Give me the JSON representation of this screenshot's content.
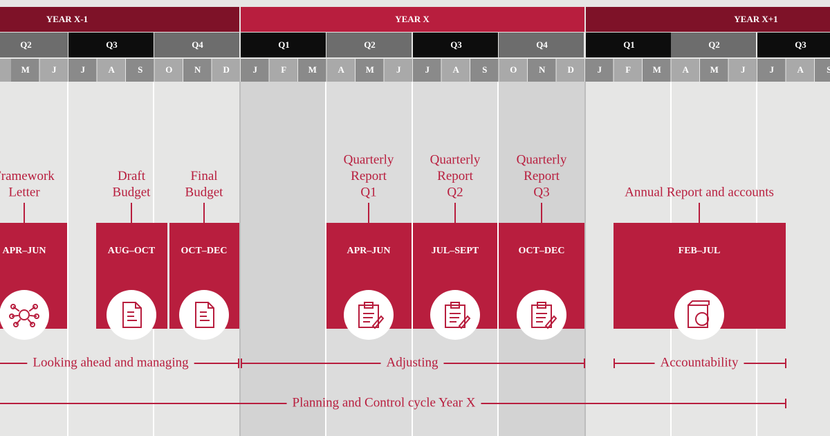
{
  "years": [
    "YEAR X-1",
    "YEAR X",
    "YEAR X+1"
  ],
  "quarters": [
    "Q2",
    "Q3",
    "Q4",
    "Q1",
    "Q2",
    "Q3",
    "Q4",
    "Q1",
    "Q2",
    "Q3"
  ],
  "months": [
    "M",
    "J",
    "J",
    "A",
    "S",
    "O",
    "N",
    "D",
    "J",
    "F",
    "M",
    "A",
    "M",
    "J",
    "J",
    "A",
    "S",
    "O",
    "N",
    "D",
    "J",
    "F",
    "M",
    "A",
    "M",
    "J",
    "J",
    "A",
    "S"
  ],
  "events": [
    {
      "lines": [
        "Framework",
        "Letter"
      ],
      "period": "APR–JUN"
    },
    {
      "lines": [
        "Draft",
        "Budget"
      ],
      "period": "AUG–OCT"
    },
    {
      "lines": [
        "Final",
        "Budget"
      ],
      "period": "OCT–DEC"
    },
    {
      "lines": [
        "Quarterly",
        "Report",
        "Q1"
      ],
      "period": "APR–JUN"
    },
    {
      "lines": [
        "Quarterly",
        "Report",
        "Q2"
      ],
      "period": "JUL–SEPT"
    },
    {
      "lines": [
        "Quarterly",
        "Report",
        "Q3"
      ],
      "period": "OCT–DEC"
    },
    {
      "lines": [
        "Annual Report and accounts"
      ],
      "period": "FEB–JUL"
    }
  ],
  "phases": [
    "Looking ahead and managing",
    "Adjusting",
    "Accountability"
  ],
  "cycle": "Planning and Control cycle Year X"
}
